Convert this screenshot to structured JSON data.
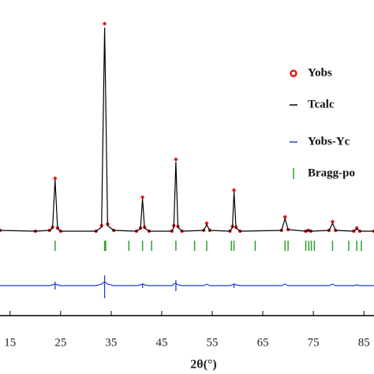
{
  "chart_data": {
    "type": "line",
    "xlabel": "2θ(°)",
    "xlim": [
      13,
      87
    ],
    "ylim": [
      0,
      400
    ],
    "xticks": [
      15,
      25,
      35,
      45,
      55,
      65,
      75,
      85
    ],
    "legend": "upper right",
    "x": [
      13,
      20,
      22.8,
      23.4,
      23.9,
      24.4,
      25,
      32,
      33.1,
      33.7,
      34.3,
      35.5,
      40,
      40.8,
      41.2,
      41.6,
      42.5,
      47,
      47.4,
      47.8,
      48.2,
      49,
      53.3,
      53.9,
      54.5,
      58.5,
      59,
      59.3,
      59.7,
      60.5,
      68.7,
      69.4,
      70,
      73.5,
      74,
      74.5,
      78.1,
      78.8,
      79.4,
      83,
      83.6,
      84.2,
      87
    ],
    "series": [
      {
        "name": "Yobs",
        "color": "#e41a1c",
        "values": [
          108,
          107,
          108,
          112,
          174,
          111,
          107,
          107,
          114,
          370,
          116,
          108,
          107,
          111,
          150,
          112,
          107,
          107,
          114,
          198,
          113,
          107,
          108,
          117,
          108,
          107,
          113,
          159,
          112,
          107,
          108,
          125,
          109,
          107,
          108,
          107,
          108,
          119,
          108,
          107,
          111,
          107,
          107
        ]
      },
      {
        "name": "Tcalc",
        "color": "#000000",
        "values": [
          108,
          107,
          108,
          111,
          172,
          110,
          107,
          107,
          112,
          365,
          114,
          108,
          107,
          110,
          148,
          111,
          107,
          107,
          112,
          195,
          112,
          107,
          108,
          115,
          108,
          107,
          112,
          157,
          111,
          107,
          108,
          123,
          109,
          107,
          108,
          107,
          108,
          117,
          108,
          107,
          110,
          107,
          107
        ]
      },
      {
        "name": "Yobs-Yc",
        "color": "#1f3fd6",
        "values": [
          38,
          38,
          38,
          39,
          40,
          39,
          38,
          38,
          40,
          43,
          40,
          38,
          38,
          39,
          40,
          39,
          38,
          38,
          40,
          41,
          39,
          38,
          38,
          40,
          38,
          38,
          39,
          40,
          39,
          38,
          38,
          40,
          38,
          38,
          38,
          38,
          38,
          40,
          38,
          38,
          39,
          38,
          38
        ],
        "spikes": [
          [
            23.9,
            33,
            43
          ],
          [
            33.7,
            22,
            51
          ],
          [
            41.2,
            35,
            41
          ],
          [
            47.8,
            31,
            45
          ],
          [
            59.3,
            35,
            41
          ]
        ]
      },
      {
        "name": "Bragg-po",
        "color": "#2ca02c",
        "positions": [
          23.9,
          33.7,
          33.9,
          38.5,
          41.2,
          43,
          47.8,
          51.5,
          53.9,
          58.8,
          59.3,
          63.5,
          69.4,
          70,
          73.5,
          74.1,
          74.6,
          75.2,
          78.8,
          82,
          83.6,
          84.5
        ]
      }
    ]
  }
}
